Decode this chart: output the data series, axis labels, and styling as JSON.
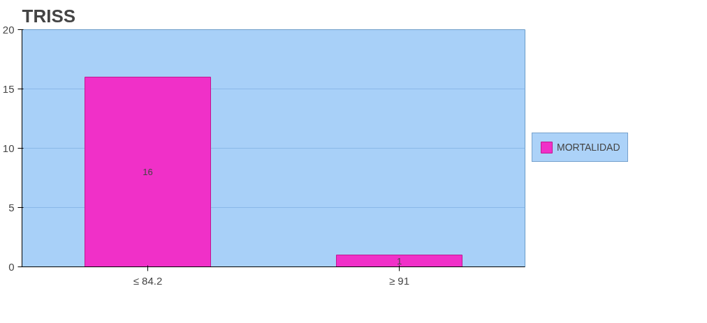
{
  "chart_data": {
    "type": "bar",
    "title": "TRISS",
    "categories": [
      "≤ 84.2",
      "≥ 91"
    ],
    "series": [
      {
        "name": "MORTALIDAD",
        "color": "#f030c8",
        "values": [
          16,
          1
        ]
      }
    ],
    "ylim": [
      0,
      20
    ],
    "yticks": [
      0,
      5,
      10,
      15,
      20
    ],
    "grid": "y",
    "legend": "right",
    "data_labels": true
  }
}
